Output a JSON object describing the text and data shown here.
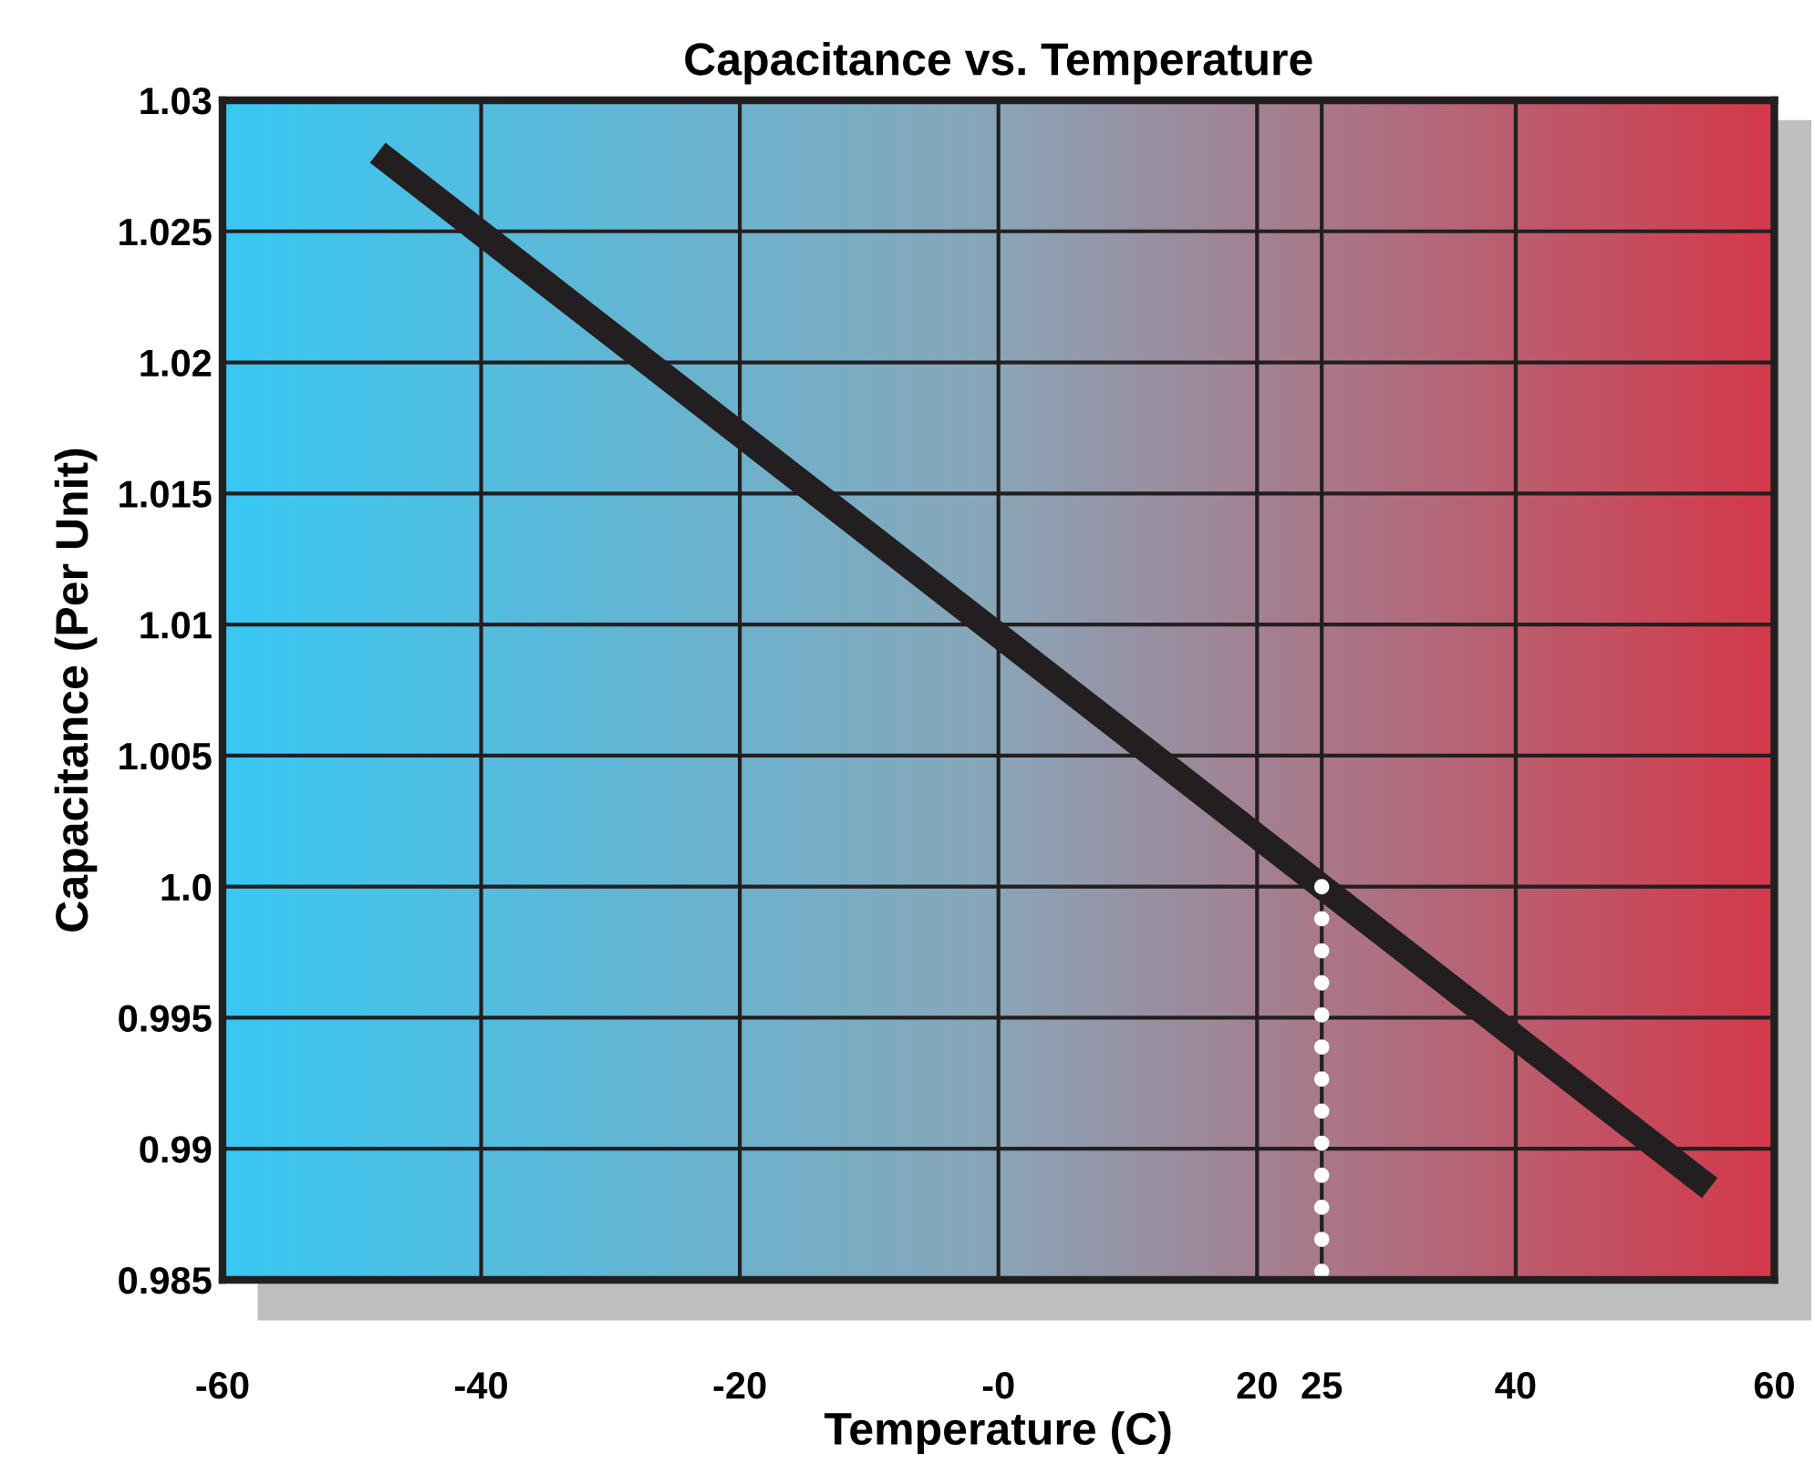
{
  "chart_data": {
    "type": "line",
    "title": "Capacitance vs. Temperature",
    "xlabel": "Temperature (C)",
    "ylabel": "Capacitance (Per Unit)",
    "series": [
      {
        "color": "#231f20",
        "x": [
          -48,
          55
        ],
        "values": [
          1.028,
          0.9885
        ],
        "line_style": "solid"
      },
      {
        "color": "#ffffff",
        "x": [
          25,
          25
        ],
        "values": [
          1.0,
          0.985
        ],
        "line_style": "dotted"
      }
    ],
    "xlim": [
      -60,
      60
    ],
    "ylim": [
      0.985,
      1.03
    ],
    "xticks": [
      -60,
      -40,
      -20,
      {
        "value": 0,
        "label": "-0"
      },
      20,
      25,
      40,
      60
    ],
    "yticks": [
      0.985,
      0.99,
      0.995,
      {
        "value": 1.0,
        "label": "1.0"
      },
      1.005,
      1.01,
      1.015,
      1.02,
      1.025,
      1.03
    ],
    "grid": true,
    "legend": false
  }
}
